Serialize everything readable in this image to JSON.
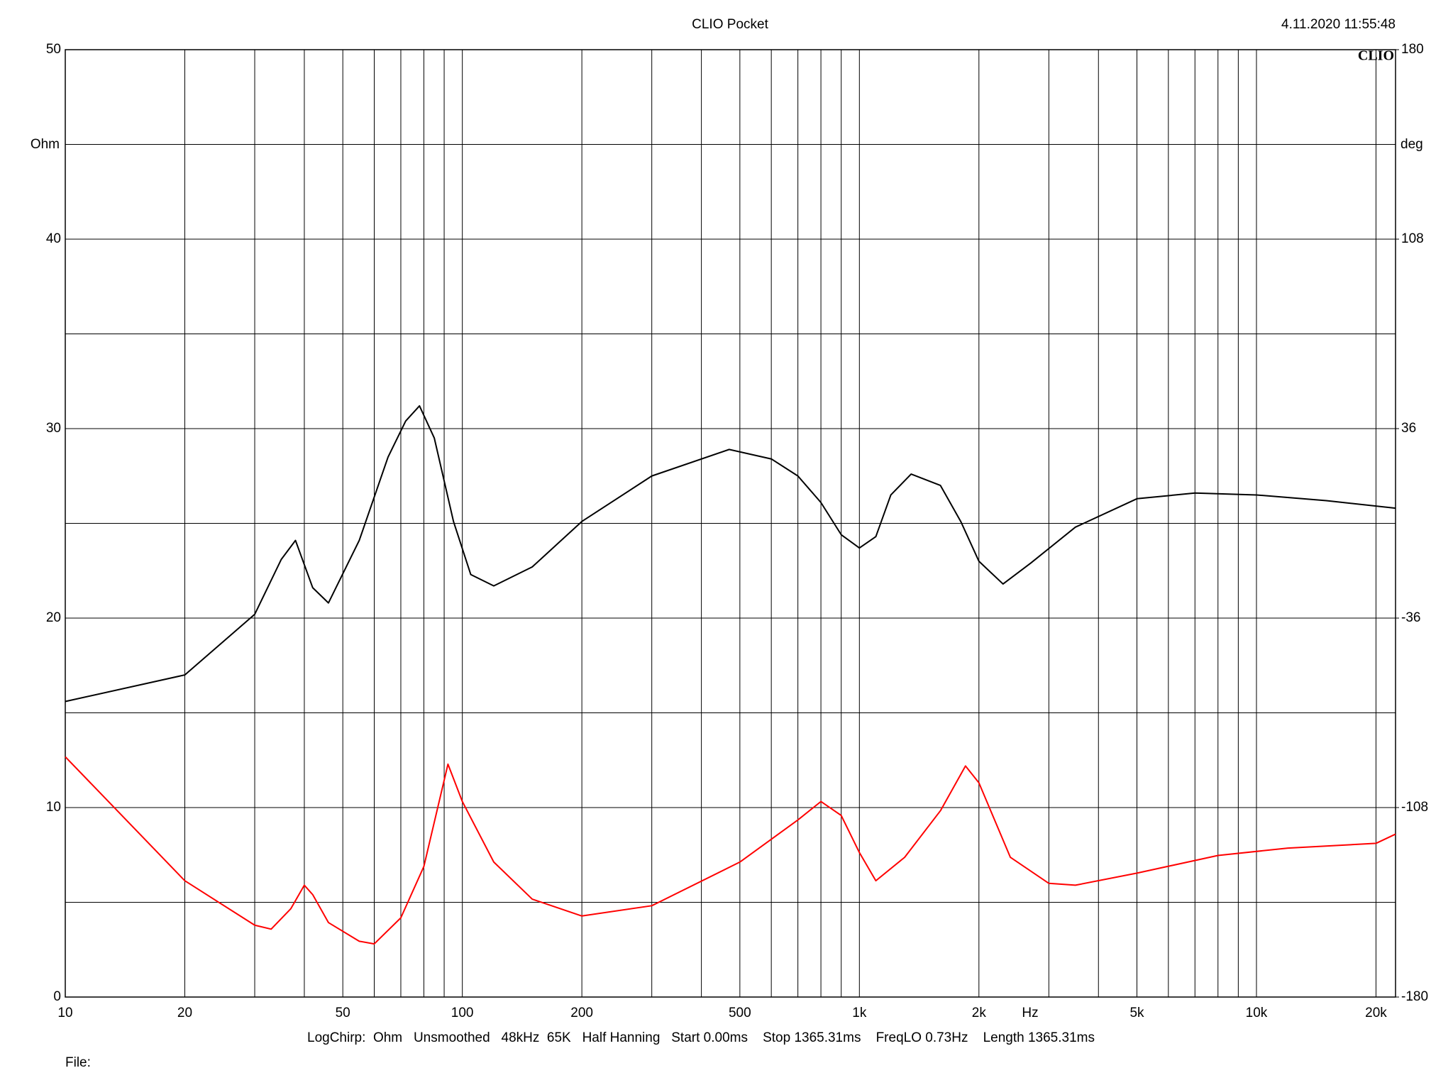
{
  "chart_data": {
    "type": "line",
    "title": "CLIO Pocket",
    "timestamp": "4.11.2020 11:55:48",
    "logo": "CLIO",
    "ylabel": "Ohm",
    "y2label": "deg",
    "xunit": "Hz",
    "footer": "LogChirp:  Ohm   Unsmoothed   48kHz  65K   Half Hanning   Start 0.00ms    Stop 1365.31ms    FreqLO 0.73Hz    Length 1365.31ms",
    "file_label": "File:",
    "xscale": "log",
    "xlim": [
      10,
      22400
    ],
    "xticks": [
      10,
      20,
      50,
      100,
      200,
      500,
      {
        "value": 1000,
        "label": "1k"
      },
      {
        "value": 2000,
        "label": "2k"
      },
      {
        "value": 5000,
        "label": "5k"
      },
      {
        "value": 10000,
        "label": "10k"
      },
      {
        "value": 20000,
        "label": "20k"
      }
    ],
    "x_minor_ticks": [
      30,
      40,
      60,
      70,
      80,
      90,
      300,
      400,
      600,
      700,
      800,
      900,
      3000,
      4000,
      6000,
      7000,
      8000,
      9000
    ],
    "ylim": [
      0,
      50
    ],
    "yticks": [
      0,
      10,
      20,
      30,
      40,
      50
    ],
    "y_minor_ticks": [
      5,
      15,
      25,
      35,
      45
    ],
    "y2lim": [
      -180,
      180
    ],
    "y2ticks": [
      -180,
      -108,
      -36,
      36,
      108,
      180
    ],
    "grid": true,
    "x": [
      10,
      20,
      30,
      35,
      38,
      42,
      46,
      55,
      65,
      72,
      78,
      85,
      95,
      105,
      120,
      150,
      200,
      300,
      470,
      600,
      700,
      800,
      900,
      1000,
      1100,
      1200,
      1350,
      1600,
      1800,
      2000,
      2300,
      2700,
      3500,
      5000,
      7000,
      10000,
      15000,
      22400
    ],
    "series": [
      {
        "color": "#000000",
        "axis": "y",
        "values": [
          15.6,
          17.0,
          20.2,
          23.1,
          24.1,
          21.6,
          20.8,
          24.1,
          28.5,
          30.4,
          31.2,
          29.5,
          25.1,
          22.3,
          21.7,
          22.7,
          25.1,
          27.5,
          28.9,
          28.4,
          27.5,
          26.1,
          24.4,
          23.7,
          24.3,
          26.5,
          27.6,
          27.0,
          25.1,
          23.0,
          21.8,
          22.9,
          24.8,
          26.3,
          26.6,
          26.5,
          26.2,
          25.8
        ]
      }
    ],
    "phase_x": [
      10,
      20,
      30,
      33,
      37,
      40,
      42,
      46,
      55,
      60,
      70,
      80,
      92,
      100,
      120,
      150,
      200,
      300,
      500,
      700,
      800,
      900,
      1000,
      1100,
      1300,
      1600,
      1850,
      2000,
      2400,
      3000,
      3500,
      5000,
      8000,
      12000,
      20000,
      22400
    ],
    "phase_series": {
      "color": "#ff0000",
      "axis": "y2",
      "values": [
        -88.7,
        -135.8,
        -152.7,
        -154.2,
        -146.4,
        -137.5,
        -141.1,
        -151.7,
        -158.8,
        -159.8,
        -149.9,
        -130.4,
        -91.5,
        -105.7,
        -128.7,
        -142.8,
        -149.2,
        -145.3,
        -128.7,
        -112.7,
        -105.7,
        -111.0,
        -125.1,
        -135.8,
        -126.9,
        -109.2,
        -92.2,
        -98.6,
        -126.9,
        -136.8,
        -137.5,
        -132.9,
        -126.2,
        -123.4,
        -121.6,
        -118.1
      ]
    }
  }
}
